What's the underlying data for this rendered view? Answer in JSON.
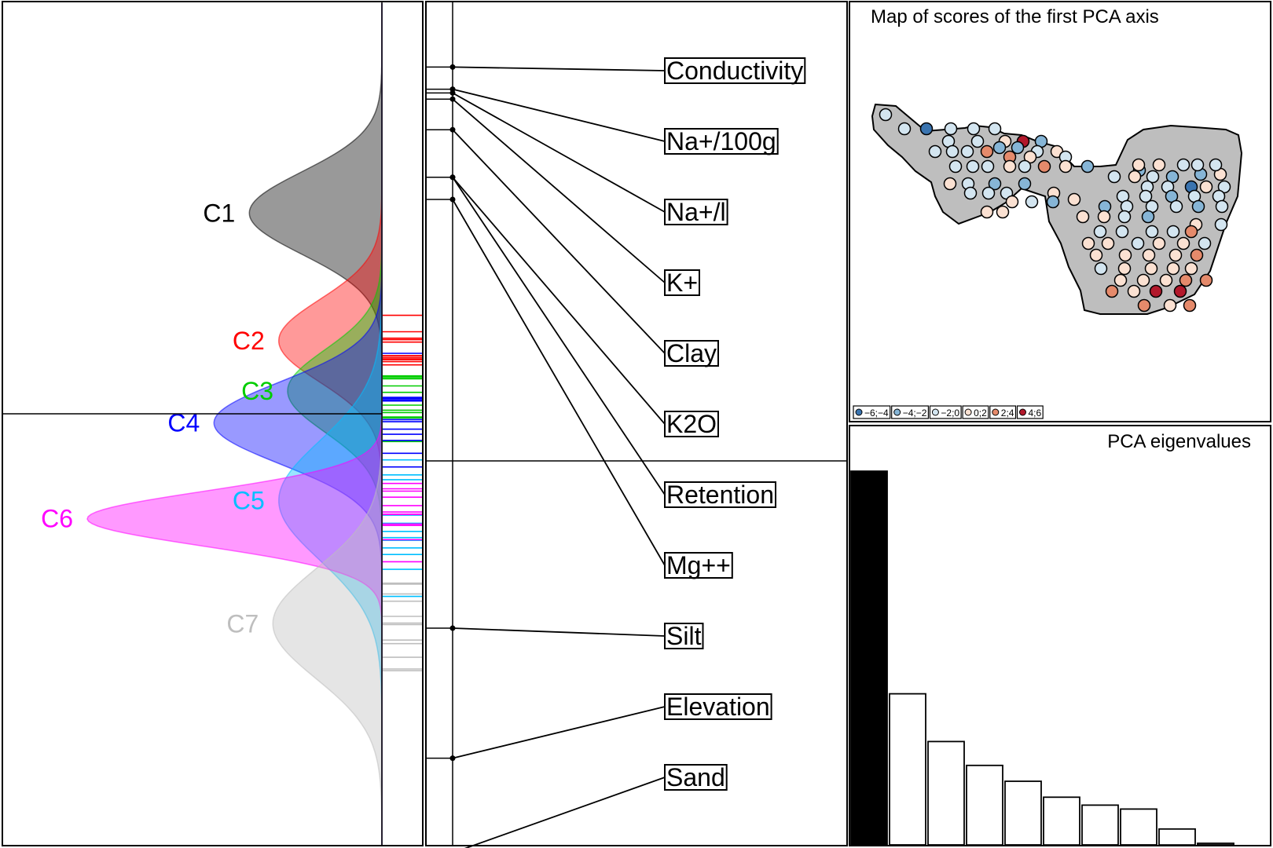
{
  "chart_data": [
    {
      "type": "area",
      "panel": "score-densities",
      "series": [
        {
          "name": "C1",
          "color": "#000000",
          "mean": 0.44,
          "sd": 0.09,
          "peak": 0.45
        },
        {
          "name": "C2",
          "color": "#ff0000",
          "mean": 0.16,
          "sd": 0.09,
          "peak": 0.35
        },
        {
          "name": "C3",
          "color": "#00cd00",
          "mean": 0.05,
          "sd": 0.09,
          "peak": 0.32
        },
        {
          "name": "C4",
          "color": "#0000ff",
          "mean": -0.02,
          "sd": 0.09,
          "peak": 0.57
        },
        {
          "name": "C5",
          "color": "#00bfff",
          "mean": -0.19,
          "sd": 0.13,
          "peak": 0.35
        },
        {
          "name": "C6",
          "color": "#ff00ff",
          "mean": -0.23,
          "sd": 0.06,
          "peak": 1.0
        },
        {
          "name": "C7",
          "color": "#bebebe",
          "mean": -0.46,
          "sd": 0.12,
          "peak": 0.37
        }
      ],
      "marker_colors": [
        "#ff0000",
        "#00cd00",
        "#0000ff",
        "#00bfff",
        "#ff00ff",
        "#bebebe"
      ],
      "axis_zero_line": 0
    },
    {
      "type": "line",
      "panel": "variable-correlations",
      "variables": [
        {
          "name": "Conductivity",
          "score": 0.836
        },
        {
          "name": "Na+/100g",
          "score": 0.789
        },
        {
          "name": "Na+/l",
          "score": 0.781
        },
        {
          "name": "K+",
          "score": 0.768
        },
        {
          "name": "Clay",
          "score": 0.703
        },
        {
          "name": "K2O",
          "score": 0.602
        },
        {
          "name": "Retention",
          "score": 0.602
        },
        {
          "name": "Mg++",
          "score": 0.555
        },
        {
          "name": "Silt",
          "score": -0.355
        },
        {
          "name": "Elevation",
          "score": -0.631
        },
        {
          "name": "Sand",
          "score": -0.832
        }
      ],
      "axis_zero_line": 0
    },
    {
      "type": "scatter",
      "panel": "score-map",
      "title": "Map of scores of the first PCA axis",
      "legend": {
        "position": "bottom-left",
        "classes": [
          "−6;−4",
          "−4;−2",
          "−2;0",
          "0;2",
          "2;4",
          "4;6"
        ],
        "colors": [
          "#3a74b0",
          "#86b5d6",
          "#d3e5f0",
          "#fbe1d2",
          "#e58a6b",
          "#b2182b"
        ]
      },
      "points": [
        [
          -2,
          0
        ],
        [
          -2,
          0
        ],
        [
          -6,
          -4
        ],
        [
          -2,
          0
        ],
        [
          -2,
          0
        ],
        [
          -2,
          0
        ],
        [
          -2,
          0
        ],
        [
          -2,
          0
        ],
        [
          0,
          2
        ],
        [
          4,
          6
        ],
        [
          -4,
          -2
        ],
        [
          -4,
          -2
        ],
        [
          -4,
          -2
        ],
        [
          -2,
          0
        ],
        [
          -2,
          0
        ],
        [
          -2,
          0
        ],
        [
          2,
          4
        ],
        [
          -2,
          0
        ],
        [
          0,
          2
        ],
        [
          2,
          4
        ],
        [
          0,
          2
        ],
        [
          -2,
          0
        ],
        [
          -2,
          0
        ],
        [
          -2,
          0
        ],
        [
          -2,
          0
        ],
        [
          0,
          2
        ],
        [
          -2,
          0
        ],
        [
          2,
          4
        ],
        [
          0,
          2
        ],
        [
          -4,
          -2
        ],
        [
          -4,
          -2
        ],
        [
          -4,
          -2
        ],
        [
          0,
          2
        ],
        [
          0,
          2
        ],
        [
          -2,
          0
        ],
        [
          -4,
          -2
        ],
        [
          -4,
          -2
        ],
        [
          -2,
          0
        ],
        [
          -2,
          0
        ],
        [
          -2,
          0
        ],
        [
          0,
          2
        ],
        [
          0,
          2
        ],
        [
          0,
          2
        ],
        [
          -2,
          0
        ],
        [
          -4,
          -2
        ],
        [
          0,
          2
        ],
        [
          0,
          2
        ],
        [
          0,
          2
        ],
        [
          0,
          2
        ],
        [
          -2,
          0
        ],
        [
          -2,
          0
        ],
        [
          -2,
          0
        ],
        [
          -2,
          0
        ],
        [
          0,
          2
        ],
        [
          -2,
          0
        ],
        [
          -4,
          -2
        ],
        [
          -2,
          0
        ],
        [
          -2,
          0
        ],
        [
          -6,
          -4
        ],
        [
          0,
          2
        ],
        [
          -2,
          0
        ],
        [
          -2,
          0
        ],
        [
          -2,
          0
        ],
        [
          -4,
          -2
        ],
        [
          -2,
          0
        ],
        [
          -2,
          0
        ],
        [
          -4,
          -2
        ],
        [
          -2,
          0
        ],
        [
          -2,
          0
        ],
        [
          -2,
          0
        ],
        [
          -4,
          -2
        ],
        [
          -2,
          0
        ],
        [
          0,
          2
        ],
        [
          0,
          2
        ],
        [
          -2,
          0
        ],
        [
          -4,
          -2
        ],
        [
          0,
          2
        ],
        [
          -2,
          0
        ],
        [
          -2,
          0
        ],
        [
          -2,
          0
        ],
        [
          -2,
          0
        ],
        [
          -2,
          0
        ],
        [
          2,
          4
        ],
        [
          0,
          2
        ],
        [
          0,
          2
        ],
        [
          -2,
          0
        ],
        [
          0,
          2
        ],
        [
          0,
          2
        ],
        [
          -2,
          0
        ],
        [
          0,
          2
        ],
        [
          0,
          2
        ],
        [
          0,
          2
        ],
        [
          0,
          2
        ],
        [
          2,
          4
        ],
        [
          -2,
          0
        ],
        [
          0,
          2
        ],
        [
          0,
          2
        ],
        [
          0,
          2
        ],
        [
          0,
          2
        ],
        [
          0,
          2
        ],
        [
          0,
          2
        ],
        [
          0,
          2
        ],
        [
          2,
          4
        ],
        [
          2,
          4
        ],
        [
          2,
          4
        ],
        [
          0,
          2
        ],
        [
          4,
          6
        ],
        [
          4,
          6
        ],
        [
          2,
          4
        ],
        [
          0,
          2
        ],
        [
          2,
          4
        ],
        [
          2,
          4
        ],
        [
          2,
          4
        ],
        [
          0,
          2
        ],
        [
          0,
          2
        ]
      ]
    },
    {
      "type": "bar",
      "panel": "eigenvalues",
      "title": "PCA eigenvalues",
      "values": [
        4.7,
        1.9,
        1.3,
        1.0,
        0.8,
        0.6,
        0.5,
        0.45,
        0.2,
        0.02
      ],
      "highlighted_index": 0,
      "ylim": [
        0,
        4.8
      ]
    }
  ]
}
